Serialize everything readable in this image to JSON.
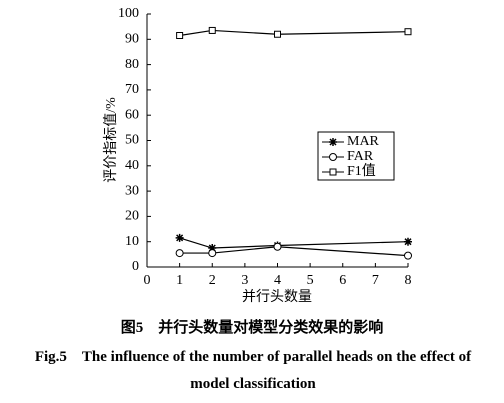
{
  "chart_data": {
    "type": "line",
    "x_label": "并行头数量",
    "y_label": "评价指标值/%",
    "x": [
      1,
      2,
      4,
      8
    ],
    "series": [
      {
        "name": "MAR",
        "color": "#000000",
        "marker": "asterisk",
        "values": [
          11.5,
          7.5,
          8.5,
          10
        ]
      },
      {
        "name": "FAR",
        "color": "#000000",
        "marker": "circle",
        "values": [
          5.5,
          5.5,
          8,
          4.5
        ]
      },
      {
        "name": "F1值",
        "color": "#000000",
        "marker": "square",
        "values": [
          91.5,
          93.5,
          92,
          93
        ]
      }
    ],
    "xlim": [
      0,
      8
    ],
    "xticks": [
      0,
      1,
      2,
      3,
      4,
      5,
      6,
      7,
      8
    ],
    "ylim": [
      0,
      100
    ],
    "yticks": [
      0,
      10,
      20,
      30,
      40,
      50,
      60,
      70,
      80,
      90,
      100
    ],
    "grid": false,
    "legend": "right"
  },
  "caption": {
    "cn": "图5　并行头数量对模型分类效果的影响",
    "en": "Fig.5　The influence of the number of parallel heads on the effect of model classification"
  }
}
